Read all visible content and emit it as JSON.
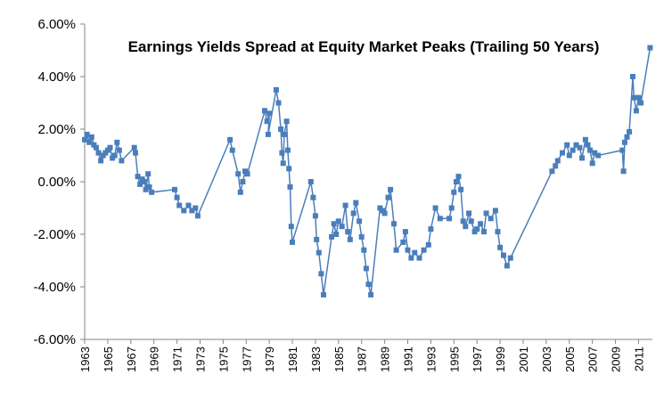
{
  "chart_data": {
    "type": "line",
    "title": "Earnings Yields Spread at Equity Market Peaks (Trailing 50 Years)",
    "xlabel": "",
    "ylabel": "",
    "ylim": [
      -6,
      6
    ],
    "xlim": [
      1963,
      2012.2
    ],
    "y_ticks": [
      6,
      4,
      2,
      0,
      -2,
      -4,
      -6
    ],
    "y_tick_labels": [
      "6.00%",
      "4.00%",
      "2.00%",
      "0.00%",
      "-2.00%",
      "-4.00%",
      "-6.00%"
    ],
    "x_tick_labels": [
      "1963",
      "1965",
      "1967",
      "1969",
      "1971",
      "1973",
      "1975",
      "1977",
      "1979",
      "1981",
      "1983",
      "1985",
      "1987",
      "1989",
      "1991",
      "1993",
      "1995",
      "1997",
      "1999",
      "2001",
      "2003",
      "2005",
      "2007",
      "2009",
      "2011"
    ],
    "grid": false,
    "legend": "none",
    "marker": "square",
    "series": [
      {
        "color": "#4a7ebb",
        "points": [
          [
            1963.0,
            1.6
          ],
          [
            1963.2,
            1.8
          ],
          [
            1963.4,
            1.5
          ],
          [
            1963.6,
            1.7
          ],
          [
            1963.8,
            1.4
          ],
          [
            1964.0,
            1.3
          ],
          [
            1964.2,
            1.1
          ],
          [
            1964.4,
            0.8
          ],
          [
            1964.6,
            1.0
          ],
          [
            1964.8,
            1.1
          ],
          [
            1965.0,
            1.2
          ],
          [
            1965.2,
            1.3
          ],
          [
            1965.4,
            0.9
          ],
          [
            1965.6,
            1.0
          ],
          [
            1965.8,
            1.5
          ],
          [
            1966.0,
            1.2
          ],
          [
            1966.2,
            0.8
          ],
          [
            1967.3,
            1.3
          ],
          [
            1967.4,
            1.1
          ],
          [
            1967.6,
            0.2
          ],
          [
            1967.8,
            -0.1
          ],
          [
            1968.0,
            0.1
          ],
          [
            1968.2,
            0.0
          ],
          [
            1968.3,
            -0.3
          ],
          [
            1968.5,
            0.3
          ],
          [
            1968.6,
            -0.2
          ],
          [
            1968.8,
            -0.4
          ],
          [
            1970.8,
            -0.3
          ],
          [
            1971.0,
            -0.6
          ],
          [
            1971.2,
            -0.9
          ],
          [
            1971.6,
            -1.1
          ],
          [
            1972.0,
            -0.9
          ],
          [
            1972.3,
            -1.1
          ],
          [
            1972.6,
            -1.0
          ],
          [
            1972.8,
            -1.3
          ],
          [
            1975.6,
            1.6
          ],
          [
            1975.8,
            1.2
          ],
          [
            1976.3,
            0.3
          ],
          [
            1976.5,
            -0.4
          ],
          [
            1976.7,
            0.0
          ],
          [
            1976.9,
            0.4
          ],
          [
            1977.1,
            0.3
          ],
          [
            1978.6,
            2.7
          ],
          [
            1978.8,
            2.3
          ],
          [
            1979.0,
            2.6
          ],
          [
            1978.9,
            1.8
          ],
          [
            1979.6,
            3.5
          ],
          [
            1979.8,
            3.0
          ],
          [
            1980.0,
            2.0
          ],
          [
            1980.1,
            1.1
          ],
          [
            1980.2,
            0.7
          ],
          [
            1980.3,
            1.8
          ],
          [
            1980.5,
            2.3
          ],
          [
            1980.6,
            1.2
          ],
          [
            1980.7,
            0.5
          ],
          [
            1980.8,
            -0.2
          ],
          [
            1980.9,
            -1.7
          ],
          [
            1981.0,
            -2.3
          ],
          [
            1982.6,
            0.0
          ],
          [
            1982.8,
            -0.6
          ],
          [
            1983.0,
            -1.3
          ],
          [
            1983.1,
            -2.2
          ],
          [
            1983.3,
            -2.7
          ],
          [
            1983.5,
            -3.5
          ],
          [
            1983.7,
            -4.3
          ],
          [
            1984.4,
            -2.1
          ],
          [
            1984.6,
            -1.6
          ],
          [
            1984.8,
            -2.0
          ],
          [
            1985.0,
            -1.5
          ],
          [
            1985.3,
            -1.7
          ],
          [
            1985.6,
            -0.9
          ],
          [
            1985.8,
            -1.9
          ],
          [
            1986.0,
            -2.2
          ],
          [
            1986.3,
            -1.2
          ],
          [
            1986.5,
            -0.8
          ],
          [
            1986.8,
            -1.5
          ],
          [
            1987.0,
            -2.1
          ],
          [
            1987.2,
            -2.6
          ],
          [
            1987.4,
            -3.3
          ],
          [
            1987.6,
            -3.9
          ],
          [
            1987.8,
            -4.3
          ],
          [
            1988.6,
            -1.0
          ],
          [
            1988.8,
            -1.1
          ],
          [
            1989.0,
            -1.2
          ],
          [
            1989.3,
            -0.6
          ],
          [
            1989.5,
            -0.3
          ],
          [
            1989.8,
            -1.6
          ],
          [
            1990.0,
            -2.6
          ],
          [
            1990.6,
            -2.3
          ],
          [
            1990.8,
            -1.9
          ],
          [
            1991.0,
            -2.6
          ],
          [
            1991.3,
            -2.9
          ],
          [
            1991.6,
            -2.7
          ],
          [
            1992.0,
            -2.9
          ],
          [
            1992.4,
            -2.6
          ],
          [
            1992.8,
            -2.4
          ],
          [
            1993.0,
            -1.8
          ],
          [
            1993.4,
            -1.0
          ],
          [
            1993.8,
            -1.4
          ],
          [
            1994.6,
            -1.4
          ],
          [
            1994.8,
            -1.0
          ],
          [
            1995.0,
            -0.4
          ],
          [
            1995.2,
            0.0
          ],
          [
            1995.4,
            0.2
          ],
          [
            1995.6,
            -0.3
          ],
          [
            1995.8,
            -1.5
          ],
          [
            1996.0,
            -1.7
          ],
          [
            1996.3,
            -1.2
          ],
          [
            1996.5,
            -1.5
          ],
          [
            1996.8,
            -1.9
          ],
          [
            1997.0,
            -1.8
          ],
          [
            1997.3,
            -1.6
          ],
          [
            1997.6,
            -1.9
          ],
          [
            1997.8,
            -1.2
          ],
          [
            1998.2,
            -1.4
          ],
          [
            1998.6,
            -1.1
          ],
          [
            1998.8,
            -1.9
          ],
          [
            1999.0,
            -2.5
          ],
          [
            1999.3,
            -2.8
          ],
          [
            1999.6,
            -3.2
          ],
          [
            1999.9,
            -2.9
          ],
          [
            2003.5,
            0.4
          ],
          [
            2003.8,
            0.6
          ],
          [
            2004.0,
            0.8
          ],
          [
            2004.4,
            1.1
          ],
          [
            2004.8,
            1.4
          ],
          [
            2005.0,
            1.0
          ],
          [
            2005.3,
            1.2
          ],
          [
            2005.6,
            1.4
          ],
          [
            2005.9,
            1.3
          ],
          [
            2006.1,
            0.9
          ],
          [
            2006.4,
            1.6
          ],
          [
            2006.6,
            1.4
          ],
          [
            2006.8,
            1.2
          ],
          [
            2007.0,
            0.7
          ],
          [
            2007.2,
            1.1
          ],
          [
            2007.5,
            1.0
          ],
          [
            2009.6,
            1.2
          ],
          [
            2009.7,
            0.4
          ],
          [
            2009.8,
            1.5
          ],
          [
            2010.0,
            1.7
          ],
          [
            2010.2,
            1.9
          ],
          [
            2010.5,
            4.0
          ],
          [
            2010.6,
            3.2
          ],
          [
            2010.8,
            2.7
          ],
          [
            2011.0,
            3.2
          ],
          [
            2011.2,
            3.0
          ],
          [
            2012.0,
            5.1
          ]
        ]
      }
    ]
  }
}
